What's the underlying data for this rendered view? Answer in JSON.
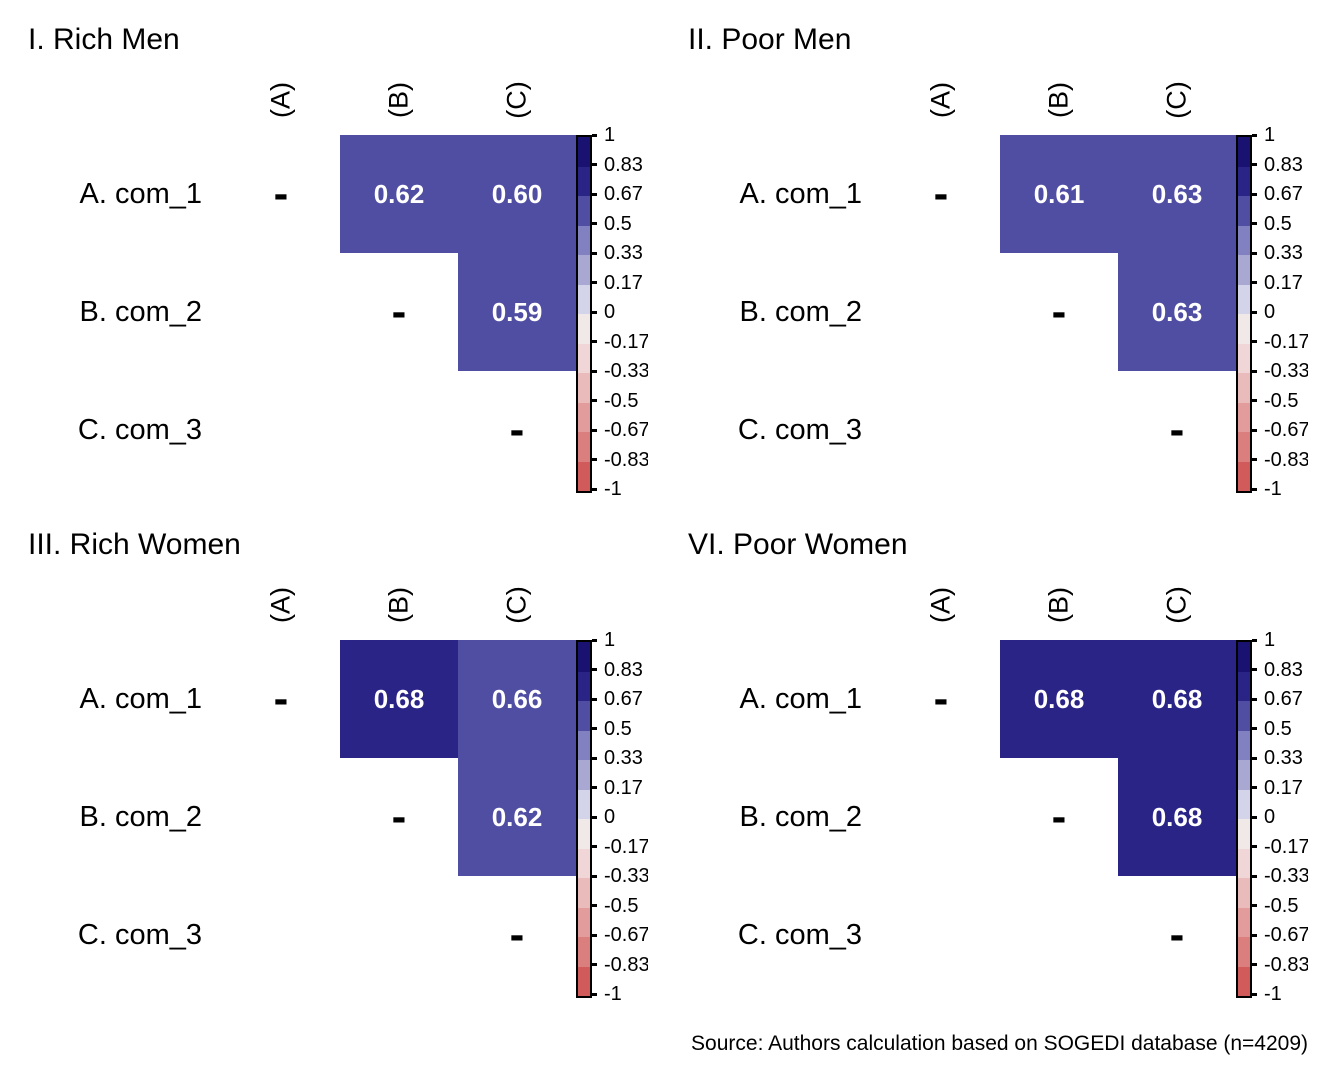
{
  "source_note": "Source: Authors calculation based on SOGEDI database (n=4209)",
  "empty_symbol": "-",
  "colorbar": {
    "ticks": [
      "1",
      "0.83",
      "0.67",
      "0.5",
      "0.33",
      "0.17",
      "0",
      "-0.17",
      "-0.33",
      "-0.5",
      "-0.67",
      "-0.83",
      "-1"
    ],
    "colors": [
      "#191270",
      "#2a2487",
      "#504ea3",
      "#8180c1",
      "#a9a8d3",
      "#d3d3e9",
      "#f1e8e8",
      "#f0d6d6",
      "#eabbbb",
      "#e29c9c",
      "#da7e7e",
      "#d15b5b"
    ],
    "vmax": 1,
    "vmin": -1
  },
  "panels": [
    {
      "title": "I. Rich Men",
      "col_labels": [
        "(A)",
        "(B)",
        "(C)"
      ],
      "row_labels": [
        "A. com_1",
        "B. com_2",
        "C. com_3"
      ],
      "cells": [
        [
          "-",
          "0.62",
          "0.60"
        ],
        [
          "",
          "-",
          "0.59"
        ],
        [
          "",
          "",
          "-"
        ]
      ],
      "values": [
        [
          null,
          0.62,
          0.6
        ],
        [
          null,
          null,
          0.59
        ],
        [
          null,
          null,
          null
        ]
      ]
    },
    {
      "title": "II. Poor Men",
      "col_labels": [
        "(A)",
        "(B)",
        "(C)"
      ],
      "row_labels": [
        "A. com_1",
        "B. com_2",
        "C. com_3"
      ],
      "cells": [
        [
          "-",
          "0.61",
          "0.63"
        ],
        [
          "",
          "-",
          "0.63"
        ],
        [
          "",
          "",
          "-"
        ]
      ],
      "values": [
        [
          null,
          0.61,
          0.63
        ],
        [
          null,
          null,
          0.63
        ],
        [
          null,
          null,
          null
        ]
      ]
    },
    {
      "title": "III. Rich Women",
      "col_labels": [
        "(A)",
        "(B)",
        "(C)"
      ],
      "row_labels": [
        "A. com_1",
        "B. com_2",
        "C. com_3"
      ],
      "cells": [
        [
          "-",
          "0.68",
          "0.66"
        ],
        [
          "",
          "-",
          "0.62"
        ],
        [
          "",
          "",
          "-"
        ]
      ],
      "values": [
        [
          null,
          0.68,
          0.66
        ],
        [
          null,
          null,
          0.62
        ],
        [
          null,
          null,
          null
        ]
      ]
    },
    {
      "title": "VI. Poor Women",
      "col_labels": [
        "(A)",
        "(B)",
        "(C)"
      ],
      "row_labels": [
        "A. com_1",
        "B. com_2",
        "C. com_3"
      ],
      "cells": [
        [
          "-",
          "0.68",
          "0.68"
        ],
        [
          "",
          "-",
          "0.68"
        ],
        [
          "",
          "",
          "-"
        ]
      ],
      "values": [
        [
          null,
          0.68,
          0.68
        ],
        [
          null,
          null,
          0.68
        ],
        [
          null,
          null,
          null
        ]
      ]
    }
  ],
  "chart_data": [
    {
      "type": "heatmap",
      "title": "I. Rich Men",
      "x": [
        "(A)",
        "(B)",
        "(C)"
      ],
      "y": [
        "A. com_1",
        "B. com_2",
        "C. com_3"
      ],
      "values": [
        [
          null,
          0.62,
          0.6
        ],
        [
          null,
          null,
          0.59
        ],
        [
          null,
          null,
          null
        ]
      ],
      "vmin": -1,
      "vmax": 1,
      "colorbar_ticks": [
        1,
        0.83,
        0.67,
        0.5,
        0.33,
        0.17,
        0,
        -0.17,
        -0.33,
        -0.5,
        -0.67,
        -0.83,
        -1
      ],
      "legend_position": "right",
      "grid": false
    },
    {
      "type": "heatmap",
      "title": "II. Poor Men",
      "x": [
        "(A)",
        "(B)",
        "(C)"
      ],
      "y": [
        "A. com_1",
        "B. com_2",
        "C. com_3"
      ],
      "values": [
        [
          null,
          0.61,
          0.63
        ],
        [
          null,
          null,
          0.63
        ],
        [
          null,
          null,
          null
        ]
      ],
      "vmin": -1,
      "vmax": 1,
      "colorbar_ticks": [
        1,
        0.83,
        0.67,
        0.5,
        0.33,
        0.17,
        0,
        -0.17,
        -0.33,
        -0.5,
        -0.67,
        -0.83,
        -1
      ],
      "legend_position": "right",
      "grid": false
    },
    {
      "type": "heatmap",
      "title": "III. Rich Women",
      "x": [
        "(A)",
        "(B)",
        "(C)"
      ],
      "y": [
        "A. com_1",
        "B. com_2",
        "C. com_3"
      ],
      "values": [
        [
          null,
          0.68,
          0.66
        ],
        [
          null,
          null,
          0.62
        ],
        [
          null,
          null,
          null
        ]
      ],
      "vmin": -1,
      "vmax": 1,
      "colorbar_ticks": [
        1,
        0.83,
        0.67,
        0.5,
        0.33,
        0.17,
        0,
        -0.17,
        -0.33,
        -0.5,
        -0.67,
        -0.83,
        -1
      ],
      "legend_position": "right",
      "grid": false
    },
    {
      "type": "heatmap",
      "title": "VI. Poor Women",
      "x": [
        "(A)",
        "(B)",
        "(C)"
      ],
      "y": [
        "A. com_1",
        "B. com_2",
        "C. com_3"
      ],
      "values": [
        [
          null,
          0.68,
          0.68
        ],
        [
          null,
          null,
          0.68
        ],
        [
          null,
          null,
          null
        ]
      ],
      "vmin": -1,
      "vmax": 1,
      "colorbar_ticks": [
        1,
        0.83,
        0.67,
        0.5,
        0.33,
        0.17,
        0,
        -0.17,
        -0.33,
        -0.5,
        -0.67,
        -0.83,
        -1
      ],
      "legend_position": "right",
      "grid": false
    }
  ]
}
